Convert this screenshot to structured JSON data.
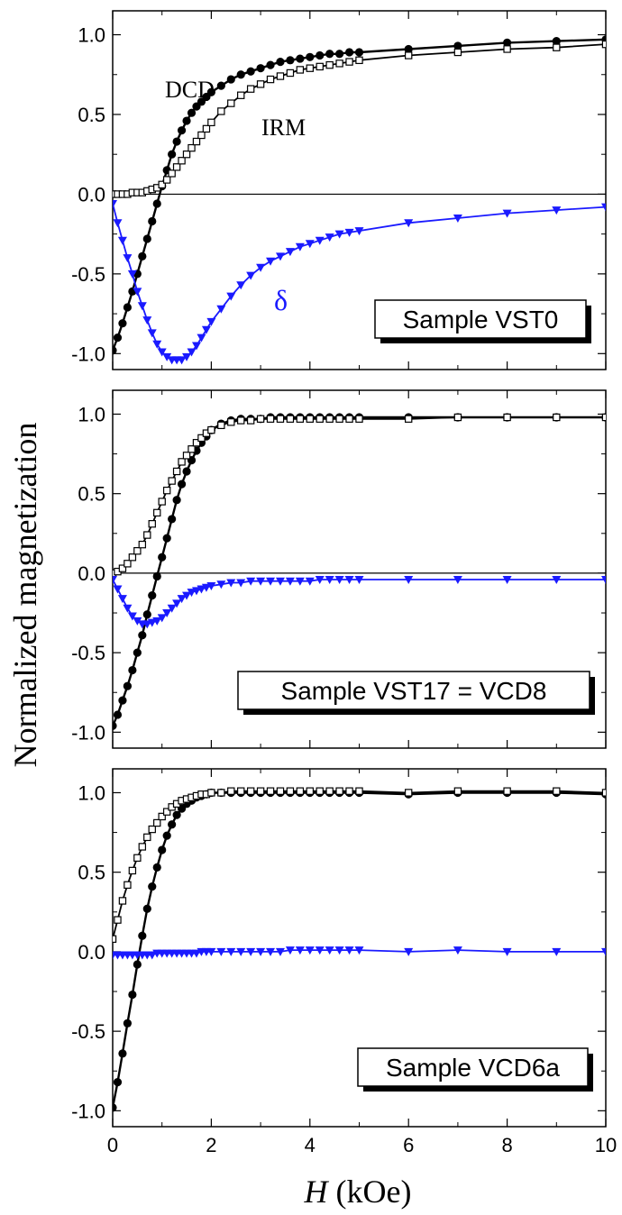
{
  "figure": {
    "ylabel": "Normalized magnetization",
    "xlabel_symbol": "H",
    "xlabel_unit": " (kOe)"
  },
  "colors": {
    "black": "#000000",
    "delta": "#1a1aff"
  },
  "chart_data": [
    {
      "type": "line",
      "sample_label": "Sample VST0",
      "xlim": [
        0,
        10
      ],
      "ylim": [
        -1.1,
        1.15
      ],
      "xticks": [
        0,
        2,
        4,
        6,
        8,
        10
      ],
      "yticks": [
        -1.0,
        -0.5,
        0.0,
        0.5,
        1.0
      ],
      "ytick_labels": [
        "-1.0",
        "-0.5",
        "0.0",
        "0.5",
        "1.0"
      ],
      "zero_line": true,
      "series": [
        {
          "name": "DCD",
          "marker": "filled-circle",
          "x": [
            0,
            0.1,
            0.2,
            0.3,
            0.4,
            0.5,
            0.6,
            0.7,
            0.8,
            0.9,
            1.0,
            1.1,
            1.2,
            1.3,
            1.4,
            1.5,
            1.6,
            1.7,
            1.8,
            1.9,
            2.0,
            2.2,
            2.4,
            2.6,
            2.8,
            3.0,
            3.2,
            3.4,
            3.6,
            3.8,
            4.0,
            4.2,
            4.4,
            4.6,
            4.8,
            5.0,
            6.0,
            7.0,
            8.0,
            9.0,
            10.0
          ],
          "y": [
            -0.98,
            -0.9,
            -0.81,
            -0.71,
            -0.61,
            -0.5,
            -0.39,
            -0.28,
            -0.17,
            -0.06,
            0.05,
            0.15,
            0.25,
            0.33,
            0.4,
            0.46,
            0.51,
            0.55,
            0.58,
            0.61,
            0.64,
            0.68,
            0.72,
            0.75,
            0.77,
            0.79,
            0.81,
            0.83,
            0.84,
            0.85,
            0.86,
            0.87,
            0.88,
            0.88,
            0.89,
            0.89,
            0.91,
            0.93,
            0.95,
            0.96,
            0.97
          ]
        },
        {
          "name": "IRM",
          "marker": "open-square",
          "x": [
            0,
            0.1,
            0.2,
            0.3,
            0.4,
            0.5,
            0.6,
            0.7,
            0.8,
            0.9,
            1.0,
            1.1,
            1.2,
            1.3,
            1.4,
            1.5,
            1.6,
            1.7,
            1.8,
            1.9,
            2.0,
            2.2,
            2.4,
            2.6,
            2.8,
            3.0,
            3.2,
            3.4,
            3.6,
            3.8,
            4.0,
            4.2,
            4.4,
            4.6,
            4.8,
            5.0,
            6.0,
            7.0,
            8.0,
            9.0,
            10.0
          ],
          "y": [
            0.0,
            0.0,
            0.0,
            0.0,
            0.01,
            0.01,
            0.01,
            0.02,
            0.03,
            0.04,
            0.06,
            0.09,
            0.13,
            0.17,
            0.21,
            0.25,
            0.29,
            0.33,
            0.37,
            0.41,
            0.45,
            0.52,
            0.57,
            0.62,
            0.66,
            0.69,
            0.72,
            0.74,
            0.76,
            0.78,
            0.79,
            0.8,
            0.81,
            0.82,
            0.83,
            0.84,
            0.87,
            0.89,
            0.91,
            0.92,
            0.94
          ]
        },
        {
          "name": "δ",
          "marker": "filled-triangle-down",
          "x": [
            0,
            0.1,
            0.2,
            0.3,
            0.4,
            0.5,
            0.6,
            0.7,
            0.8,
            0.9,
            1.0,
            1.1,
            1.2,
            1.3,
            1.4,
            1.5,
            1.6,
            1.7,
            1.8,
            1.9,
            2.0,
            2.2,
            2.4,
            2.6,
            2.8,
            3.0,
            3.2,
            3.4,
            3.6,
            3.8,
            4.0,
            4.2,
            4.4,
            4.6,
            4.8,
            5.0,
            6.0,
            7.0,
            8.0,
            9.0,
            10.0
          ],
          "y": [
            -0.06,
            -0.18,
            -0.29,
            -0.4,
            -0.5,
            -0.61,
            -0.7,
            -0.79,
            -0.87,
            -0.94,
            -0.99,
            -1.02,
            -1.04,
            -1.04,
            -1.04,
            -1.02,
            -0.99,
            -0.95,
            -0.9,
            -0.85,
            -0.8,
            -0.72,
            -0.64,
            -0.57,
            -0.51,
            -0.46,
            -0.42,
            -0.39,
            -0.36,
            -0.33,
            -0.31,
            -0.29,
            -0.27,
            -0.25,
            -0.24,
            -0.23,
            -0.18,
            -0.15,
            -0.12,
            -0.1,
            -0.08
          ]
        }
      ],
      "annotations": [
        "DCD",
        "IRM",
        "δ"
      ]
    },
    {
      "type": "line",
      "sample_label": "Sample VST17 = VCD8",
      "xlim": [
        0,
        10
      ],
      "ylim": [
        -1.1,
        1.15
      ],
      "xticks": [
        0,
        2,
        4,
        6,
        8,
        10
      ],
      "yticks": [
        -1.0,
        -0.5,
        0.0,
        0.5,
        1.0
      ],
      "ytick_labels": [
        "-1.0",
        "-0.5",
        "0.0",
        "0.5",
        "1.0"
      ],
      "zero_line": true,
      "series": [
        {
          "name": "DCD",
          "marker": "filled-circle",
          "x": [
            0,
            0.1,
            0.2,
            0.3,
            0.4,
            0.5,
            0.6,
            0.7,
            0.8,
            0.9,
            1.0,
            1.1,
            1.2,
            1.3,
            1.4,
            1.5,
            1.6,
            1.7,
            1.8,
            1.9,
            2.0,
            2.2,
            2.4,
            2.6,
            2.8,
            3.0,
            3.2,
            3.4,
            3.6,
            3.8,
            4.0,
            4.2,
            4.4,
            4.6,
            4.8,
            5.0,
            6.0,
            7.0,
            8.0,
            9.0,
            10.0
          ],
          "y": [
            -0.96,
            -0.89,
            -0.8,
            -0.71,
            -0.61,
            -0.5,
            -0.39,
            -0.26,
            -0.14,
            -0.02,
            0.1,
            0.22,
            0.34,
            0.46,
            0.56,
            0.64,
            0.71,
            0.77,
            0.82,
            0.86,
            0.9,
            0.94,
            0.96,
            0.97,
            0.97,
            0.97,
            0.98,
            0.98,
            0.98,
            0.98,
            0.98,
            0.98,
            0.98,
            0.98,
            0.98,
            0.98,
            0.98,
            0.98,
            0.98,
            0.98,
            0.98
          ]
        },
        {
          "name": "IRM",
          "marker": "open-square",
          "x": [
            0,
            0.1,
            0.2,
            0.3,
            0.4,
            0.5,
            0.6,
            0.7,
            0.8,
            0.9,
            1.0,
            1.1,
            1.2,
            1.3,
            1.4,
            1.5,
            1.6,
            1.7,
            1.8,
            1.9,
            2.0,
            2.2,
            2.4,
            2.6,
            2.8,
            3.0,
            3.2,
            3.4,
            3.6,
            3.8,
            4.0,
            4.2,
            4.4,
            4.6,
            4.8,
            5.0,
            6.0,
            7.0,
            8.0,
            9.0,
            10.0
          ],
          "y": [
            0.0,
            0.01,
            0.03,
            0.06,
            0.1,
            0.14,
            0.18,
            0.24,
            0.31,
            0.38,
            0.45,
            0.52,
            0.58,
            0.64,
            0.7,
            0.74,
            0.78,
            0.82,
            0.85,
            0.88,
            0.9,
            0.93,
            0.95,
            0.96,
            0.96,
            0.97,
            0.97,
            0.97,
            0.97,
            0.97,
            0.97,
            0.97,
            0.97,
            0.97,
            0.97,
            0.97,
            0.97,
            0.98,
            0.98,
            0.98,
            0.98
          ]
        },
        {
          "name": "δ",
          "marker": "filled-triangle-down",
          "x": [
            0,
            0.1,
            0.2,
            0.3,
            0.4,
            0.5,
            0.6,
            0.7,
            0.8,
            0.9,
            1.0,
            1.1,
            1.2,
            1.3,
            1.4,
            1.5,
            1.6,
            1.7,
            1.8,
            1.9,
            2.0,
            2.2,
            2.4,
            2.6,
            2.8,
            3.0,
            3.2,
            3.4,
            3.6,
            3.8,
            4.0,
            4.2,
            4.4,
            4.6,
            4.8,
            5.0,
            6.0,
            7.0,
            8.0,
            9.0,
            10.0
          ],
          "y": [
            -0.04,
            -0.1,
            -0.16,
            -0.22,
            -0.27,
            -0.3,
            -0.32,
            -0.32,
            -0.31,
            -0.3,
            -0.28,
            -0.25,
            -0.22,
            -0.19,
            -0.16,
            -0.14,
            -0.12,
            -0.11,
            -0.1,
            -0.09,
            -0.08,
            -0.07,
            -0.06,
            -0.06,
            -0.05,
            -0.05,
            -0.05,
            -0.05,
            -0.05,
            -0.05,
            -0.05,
            -0.04,
            -0.04,
            -0.04,
            -0.04,
            -0.04,
            -0.04,
            -0.04,
            -0.04,
            -0.04,
            -0.04
          ]
        }
      ]
    },
    {
      "type": "line",
      "sample_label": "Sample VCD6a",
      "xlim": [
        0,
        10
      ],
      "ylim": [
        -1.1,
        1.15
      ],
      "xticks": [
        0,
        2,
        4,
        6,
        8,
        10
      ],
      "xtick_labels": [
        "0",
        "2",
        "4",
        "6",
        "8",
        "10"
      ],
      "yticks": [
        -1.0,
        -0.5,
        0.0,
        0.5,
        1.0
      ],
      "ytick_labels": [
        "-1.0",
        "-0.5",
        "0.0",
        "0.5",
        "1.0"
      ],
      "zero_line": false,
      "series": [
        {
          "name": "DCD",
          "marker": "filled-circle",
          "x": [
            0,
            0.1,
            0.2,
            0.3,
            0.4,
            0.5,
            0.6,
            0.7,
            0.8,
            0.9,
            1.0,
            1.1,
            1.2,
            1.3,
            1.4,
            1.5,
            1.6,
            1.7,
            1.8,
            1.9,
            2.0,
            2.2,
            2.4,
            2.6,
            2.8,
            3.0,
            3.2,
            3.4,
            3.6,
            3.8,
            4.0,
            4.2,
            4.4,
            4.6,
            4.8,
            5.0,
            6.0,
            7.0,
            8.0,
            9.0,
            10.0
          ],
          "y": [
            -0.98,
            -0.82,
            -0.64,
            -0.45,
            -0.27,
            -0.08,
            0.1,
            0.27,
            0.41,
            0.53,
            0.64,
            0.73,
            0.8,
            0.86,
            0.9,
            0.93,
            0.95,
            0.97,
            0.98,
            0.99,
            1.0,
            1.0,
            1.0,
            1.0,
            1.0,
            1.0,
            1.0,
            1.0,
            1.0,
            1.0,
            1.0,
            1.0,
            1.0,
            1.0,
            1.0,
            1.0,
            0.99,
            1.0,
            1.0,
            1.0,
            0.99
          ]
        },
        {
          "name": "IRM",
          "marker": "open-square",
          "x": [
            0,
            0.1,
            0.2,
            0.3,
            0.4,
            0.5,
            0.6,
            0.7,
            0.8,
            0.9,
            1.0,
            1.1,
            1.2,
            1.3,
            1.4,
            1.5,
            1.6,
            1.7,
            1.8,
            1.9,
            2.0,
            2.2,
            2.4,
            2.6,
            2.8,
            3.0,
            3.2,
            3.4,
            3.6,
            3.8,
            4.0,
            4.2,
            4.4,
            4.6,
            4.8,
            5.0,
            6.0,
            7.0,
            8.0,
            9.0,
            10.0
          ],
          "y": [
            0.08,
            0.2,
            0.32,
            0.42,
            0.51,
            0.59,
            0.66,
            0.72,
            0.77,
            0.81,
            0.85,
            0.88,
            0.91,
            0.93,
            0.95,
            0.96,
            0.97,
            0.98,
            0.99,
            0.99,
            1.0,
            1.0,
            1.01,
            1.01,
            1.01,
            1.01,
            1.01,
            1.01,
            1.01,
            1.01,
            1.01,
            1.01,
            1.01,
            1.01,
            1.01,
            1.01,
            1.0,
            1.01,
            1.01,
            1.01,
            1.0
          ]
        },
        {
          "name": "δ",
          "marker": "filled-triangle-down",
          "x": [
            0,
            0.1,
            0.2,
            0.3,
            0.4,
            0.5,
            0.6,
            0.7,
            0.8,
            0.9,
            1.0,
            1.1,
            1.2,
            1.3,
            1.4,
            1.5,
            1.6,
            1.7,
            1.8,
            1.9,
            2.0,
            2.2,
            2.4,
            2.6,
            2.8,
            3.0,
            3.2,
            3.4,
            3.6,
            3.8,
            4.0,
            4.2,
            4.4,
            4.6,
            4.8,
            5.0,
            6.0,
            7.0,
            8.0,
            9.0,
            10.0
          ],
          "y": [
            -0.02,
            -0.02,
            -0.02,
            -0.02,
            -0.02,
            -0.02,
            -0.02,
            -0.02,
            -0.02,
            -0.01,
            -0.01,
            -0.01,
            -0.01,
            -0.01,
            -0.01,
            -0.01,
            -0.01,
            -0.01,
            0.0,
            0.0,
            0.0,
            0.0,
            0.0,
            0.0,
            0.0,
            0.0,
            0.0,
            0.0,
            0.01,
            0.01,
            0.01,
            0.01,
            0.01,
            0.01,
            0.01,
            0.01,
            0.0,
            0.01,
            0.0,
            0.0,
            0.0
          ]
        }
      ]
    }
  ]
}
